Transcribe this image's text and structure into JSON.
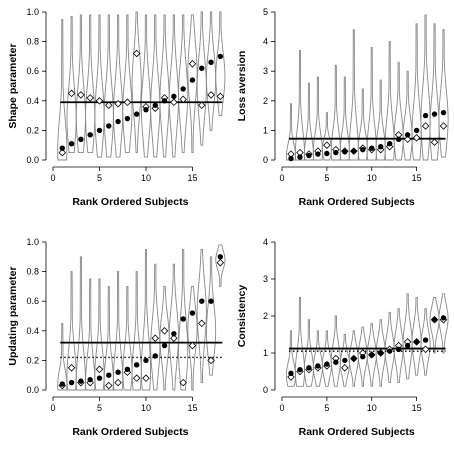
{
  "chart_data": [
    {
      "id": "shape",
      "type": "violin",
      "ylabel": "Shape parameter",
      "xlabel": "Rank Ordered Subjects",
      "xlim": [
        0,
        18.5
      ],
      "ylim": [
        0,
        1
      ],
      "xticks": [
        0,
        5,
        10,
        15
      ],
      "xtick_labels": [
        "0",
        "5",
        "10",
        "15"
      ],
      "yticks": [
        0,
        0.2,
        0.4,
        0.6,
        0.8,
        1.0
      ],
      "ytick_labels": [
        "0.0",
        "0.2",
        "0.4",
        "0.6",
        "0.8",
        "1.0"
      ],
      "x": [
        1,
        2,
        3,
        4,
        5,
        6,
        7,
        8,
        9,
        10,
        11,
        12,
        13,
        14,
        15,
        16,
        17,
        18
      ],
      "series": [
        {
          "marker": "filled-circle",
          "values": [
            0.08,
            0.11,
            0.14,
            0.17,
            0.2,
            0.23,
            0.26,
            0.28,
            0.31,
            0.34,
            0.37,
            0.4,
            0.43,
            0.48,
            0.54,
            0.62,
            0.66,
            0.7
          ]
        },
        {
          "marker": "open-diamond",
          "values": [
            0.05,
            0.45,
            0.44,
            0.42,
            0.4,
            0.37,
            0.38,
            0.39,
            0.72,
            0.36,
            0.35,
            0.42,
            0.39,
            0.41,
            0.65,
            0.37,
            0.44,
            0.43
          ]
        }
      ],
      "violin_range": [
        [
          0.0,
          0.95
        ],
        [
          0.05,
          0.97
        ],
        [
          0.05,
          0.98
        ],
        [
          0.05,
          0.98
        ],
        [
          0.02,
          0.98
        ],
        [
          0.02,
          0.98
        ],
        [
          0.02,
          0.98
        ],
        [
          0.05,
          0.98
        ],
        [
          0.05,
          1.0
        ],
        [
          0.02,
          0.98
        ],
        [
          0.02,
          0.98
        ],
        [
          0.02,
          0.98
        ],
        [
          0.02,
          0.98
        ],
        [
          0.05,
          0.98
        ],
        [
          0.05,
          0.98
        ],
        [
          0.1,
          1.0
        ],
        [
          0.2,
          1.0
        ],
        [
          0.3,
          1.0
        ]
      ],
      "hlines": [
        {
          "y": 0.39,
          "style": "solid"
        }
      ]
    },
    {
      "id": "loss",
      "type": "violin",
      "ylabel": "Loss aversion",
      "xlabel": "Rank Ordered Subjects",
      "xlim": [
        0,
        18.5
      ],
      "ylim": [
        0,
        5
      ],
      "xticks": [
        0,
        5,
        10,
        15
      ],
      "xtick_labels": [
        "0",
        "5",
        "10",
        "15"
      ],
      "yticks": [
        0,
        1,
        2,
        3,
        4,
        5
      ],
      "ytick_labels": [
        "0",
        "1",
        "2",
        "3",
        "4",
        "5"
      ],
      "x": [
        1,
        2,
        3,
        4,
        5,
        6,
        7,
        8,
        9,
        10,
        11,
        12,
        13,
        14,
        15,
        16,
        17,
        18
      ],
      "series": [
        {
          "marker": "filled-circle",
          "values": [
            0.05,
            0.1,
            0.15,
            0.2,
            0.22,
            0.25,
            0.28,
            0.3,
            0.35,
            0.4,
            0.45,
            0.55,
            0.7,
            0.85,
            1.0,
            1.5,
            1.55,
            1.6
          ]
        },
        {
          "marker": "open-diamond",
          "values": [
            0.2,
            0.25,
            0.2,
            0.3,
            0.5,
            0.35,
            0.3,
            0.3,
            0.4,
            0.35,
            0.35,
            0.45,
            0.85,
            0.7,
            0.75,
            1.15,
            0.6,
            1.15
          ]
        }
      ],
      "violin_range": [
        [
          0.0,
          1.9
        ],
        [
          0.0,
          3.7
        ],
        [
          0.0,
          2.6
        ],
        [
          0.0,
          2.8
        ],
        [
          0.0,
          1.6
        ],
        [
          0.0,
          3.2
        ],
        [
          0.0,
          2.8
        ],
        [
          0.0,
          4.4
        ],
        [
          0.0,
          2.4
        ],
        [
          0.0,
          3.8
        ],
        [
          0.0,
          2.7
        ],
        [
          0.0,
          4.0
        ],
        [
          0.0,
          3.3
        ],
        [
          0.0,
          3.0
        ],
        [
          0.0,
          4.6
        ],
        [
          0.0,
          4.9
        ],
        [
          0.0,
          4.6
        ],
        [
          0.1,
          4.4
        ]
      ],
      "hlines": [
        {
          "y": 0.72,
          "style": "solid"
        }
      ]
    },
    {
      "id": "updating",
      "type": "violin",
      "ylabel": "Updating parameter",
      "xlabel": "Rank Ordered Subjects",
      "xlim": [
        0,
        18.5
      ],
      "ylim": [
        0,
        1
      ],
      "xticks": [
        0,
        5,
        10,
        15
      ],
      "xtick_labels": [
        "0",
        "5",
        "10",
        "15"
      ],
      "yticks": [
        0,
        0.2,
        0.4,
        0.6,
        0.8,
        1.0
      ],
      "ytick_labels": [
        "0.0",
        "0.2",
        "0.4",
        "0.6",
        "0.8",
        "1.0"
      ],
      "x": [
        1,
        2,
        3,
        4,
        5,
        6,
        7,
        8,
        9,
        10,
        11,
        12,
        13,
        14,
        15,
        16,
        17,
        18
      ],
      "series": [
        {
          "marker": "filled-circle",
          "values": [
            0.04,
            0.05,
            0.06,
            0.07,
            0.08,
            0.1,
            0.12,
            0.14,
            0.17,
            0.2,
            0.23,
            0.3,
            0.38,
            0.48,
            0.52,
            0.6,
            0.6,
            0.9
          ]
        },
        {
          "marker": "open-diamond",
          "values": [
            0.03,
            0.15,
            0.05,
            0.05,
            0.14,
            0.03,
            0.05,
            0.12,
            0.08,
            0.08,
            0.35,
            0.4,
            0.35,
            0.05,
            0.3,
            0.45,
            0.2,
            0.86
          ]
        }
      ],
      "violin_range": [
        [
          0.0,
          0.45
        ],
        [
          0.0,
          0.8
        ],
        [
          0.0,
          0.9
        ],
        [
          0.0,
          0.75
        ],
        [
          0.0,
          0.75
        ],
        [
          0.0,
          0.7
        ],
        [
          0.0,
          0.8
        ],
        [
          0.0,
          0.7
        ],
        [
          0.0,
          0.8
        ],
        [
          0.0,
          0.95
        ],
        [
          0.0,
          0.85
        ],
        [
          0.0,
          0.7
        ],
        [
          0.0,
          0.85
        ],
        [
          0.0,
          0.95
        ],
        [
          0.0,
          0.7
        ],
        [
          0.05,
          0.95
        ],
        [
          0.1,
          0.9
        ],
        [
          0.7,
          0.98
        ]
      ],
      "hlines": [
        {
          "y": 0.32,
          "style": "solid"
        },
        {
          "y": 0.22,
          "style": "dotted"
        }
      ]
    },
    {
      "id": "consistency",
      "type": "violin",
      "ylabel": "Consistency",
      "xlabel": "Rank Ordered Subjects",
      "xlim": [
        0,
        18.5
      ],
      "ylim": [
        0,
        4
      ],
      "xticks": [
        0,
        5,
        10,
        15
      ],
      "xtick_labels": [
        "0",
        "5",
        "10",
        "15"
      ],
      "yticks": [
        0,
        1,
        2,
        3,
        4
      ],
      "ytick_labels": [
        "0",
        "1",
        "2",
        "3",
        "4"
      ],
      "x": [
        1,
        2,
        3,
        4,
        5,
        6,
        7,
        8,
        9,
        10,
        11,
        12,
        13,
        14,
        15,
        16,
        17,
        18
      ],
      "series": [
        {
          "marker": "filled-circle",
          "values": [
            0.45,
            0.55,
            0.6,
            0.65,
            0.7,
            0.75,
            0.8,
            0.85,
            0.9,
            0.95,
            1.0,
            1.05,
            1.1,
            1.2,
            1.3,
            1.35,
            1.9,
            1.95
          ]
        },
        {
          "marker": "open-diamond",
          "values": [
            0.35,
            0.5,
            0.55,
            0.6,
            0.65,
            0.85,
            0.6,
            0.85,
            1.0,
            0.95,
            1.0,
            1.1,
            1.2,
            1.3,
            1.3,
            1.1,
            1.9,
            1.9
          ]
        }
      ],
      "violin_range": [
        [
          0.1,
          1.6
        ],
        [
          0.1,
          2.5
        ],
        [
          0.1,
          1.9
        ],
        [
          0.1,
          1.6
        ],
        [
          0.1,
          1.6
        ],
        [
          0.1,
          2.0
        ],
        [
          0.1,
          1.5
        ],
        [
          0.1,
          1.6
        ],
        [
          0.1,
          1.7
        ],
        [
          0.1,
          1.8
        ],
        [
          0.1,
          1.9
        ],
        [
          0.2,
          2.1
        ],
        [
          0.2,
          2.2
        ],
        [
          0.3,
          2.6
        ],
        [
          0.4,
          2.5
        ],
        [
          0.4,
          2.2
        ],
        [
          1.0,
          2.5
        ],
        [
          1.0,
          2.6
        ]
      ],
      "hlines": [
        {
          "y": 1.12,
          "style": "solid"
        },
        {
          "y": 1.05,
          "style": "dotted"
        }
      ]
    }
  ]
}
